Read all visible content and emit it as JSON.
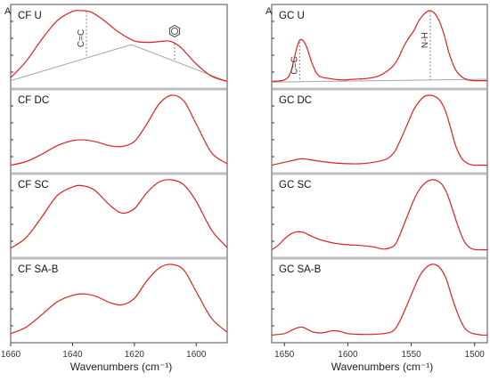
{
  "colors": {
    "spectrum": "#e02020",
    "baseline": "#a6a6a6",
    "frame": "#4d4d4d",
    "separator": "#bdbdbd"
  },
  "chart_data": [
    {
      "type": "line",
      "xlabel": "Wavenumbers (cm⁻¹)",
      "ylabel": "A",
      "xlim": [
        1660,
        1590
      ],
      "xticks": [
        1660,
        1640,
        1620,
        1600
      ],
      "grid": false,
      "panels": [
        {
          "label": "CF U",
          "x": [
            1660,
            1655,
            1650,
            1645,
            1640,
            1637,
            1634,
            1630,
            1625,
            1620,
            1615,
            1610,
            1608,
            1605,
            1600,
            1595,
            1590
          ],
          "y": [
            0.07,
            0.3,
            0.6,
            0.86,
            0.99,
            1.0,
            0.98,
            0.87,
            0.7,
            0.58,
            0.56,
            0.58,
            0.57,
            0.49,
            0.26,
            0.09,
            0.02
          ],
          "baseline": {
            "x": [
              1660,
              1621,
              1590
            ],
            "y": [
              0.03,
              0.53,
              0.02
            ]
          },
          "annotations": [
            {
              "text": "C=C",
              "x": 1635.5
            },
            {
              "icon": "benzene-ring-icon",
              "x": 1607
            }
          ]
        },
        {
          "label": "CF DC",
          "x": [
            1660,
            1655,
            1650,
            1645,
            1640,
            1636,
            1632,
            1628,
            1624,
            1620,
            1616,
            1612,
            1608,
            1604,
            1600,
            1595,
            1590
          ],
          "y": [
            0.03,
            0.08,
            0.18,
            0.3,
            0.37,
            0.38,
            0.35,
            0.3,
            0.29,
            0.36,
            0.6,
            0.88,
            1.0,
            0.92,
            0.6,
            0.2,
            0.05
          ],
          "baseline": null,
          "annotations": []
        },
        {
          "label": "CF SC",
          "x": [
            1660,
            1655,
            1650,
            1645,
            1640,
            1637,
            1633,
            1628,
            1624,
            1620,
            1616,
            1612,
            1608,
            1604,
            1600,
            1595,
            1590
          ],
          "y": [
            0.05,
            0.2,
            0.48,
            0.78,
            0.9,
            0.92,
            0.86,
            0.65,
            0.54,
            0.6,
            0.82,
            0.97,
            1.0,
            0.93,
            0.7,
            0.3,
            0.06
          ],
          "baseline": null,
          "annotations": []
        },
        {
          "label": "CF SA-B",
          "x": [
            1660,
            1655,
            1650,
            1645,
            1640,
            1636,
            1632,
            1628,
            1624,
            1620,
            1616,
            1612,
            1608,
            1604,
            1600,
            1595,
            1590
          ],
          "y": [
            0.04,
            0.13,
            0.3,
            0.48,
            0.57,
            0.59,
            0.55,
            0.47,
            0.44,
            0.53,
            0.77,
            0.95,
            1.0,
            0.92,
            0.62,
            0.25,
            0.06
          ],
          "baseline": null,
          "annotations": []
        }
      ]
    },
    {
      "type": "line",
      "xlabel": "Wavenumbers (cm⁻¹)",
      "ylabel": "A",
      "xlim": [
        1660,
        1490
      ],
      "xticks": [
        1650,
        1600,
        1550,
        1500
      ],
      "grid": false,
      "panels": [
        {
          "label": "GC U",
          "x": [
            1660,
            1650,
            1645,
            1640,
            1637,
            1633,
            1628,
            1623,
            1615,
            1605,
            1595,
            1585,
            1575,
            1565,
            1560,
            1556,
            1552,
            1548,
            1544,
            1540,
            1536,
            1532,
            1528,
            1524,
            1520,
            1515,
            1510,
            1505,
            1500,
            1495,
            1490
          ],
          "y": [
            0.02,
            0.04,
            0.15,
            0.5,
            0.6,
            0.52,
            0.26,
            0.1,
            0.06,
            0.04,
            0.05,
            0.06,
            0.1,
            0.22,
            0.35,
            0.5,
            0.62,
            0.72,
            0.86,
            0.95,
            1.0,
            0.97,
            0.86,
            0.66,
            0.4,
            0.18,
            0.08,
            0.04,
            0.03,
            0.03,
            0.03
          ],
          "baseline": {
            "x": [
              1660,
              1490
            ],
            "y": [
              0.01,
              0.05
            ]
          },
          "annotations": [
            {
              "text": "C=C",
              "x": 1638
            },
            {
              "text": "N-H",
              "x": 1535
            }
          ]
        },
        {
          "label": "GC DC",
          "x": [
            1660,
            1650,
            1640,
            1635,
            1628,
            1620,
            1610,
            1600,
            1590,
            1580,
            1572,
            1568,
            1563,
            1558,
            1553,
            1548,
            1543,
            1539,
            1535,
            1531,
            1527,
            1523,
            1519,
            1515,
            1510,
            1505,
            1500,
            1495,
            1490
          ],
          "y": [
            0.03,
            0.07,
            0.11,
            0.12,
            0.1,
            0.08,
            0.06,
            0.05,
            0.05,
            0.07,
            0.1,
            0.13,
            0.22,
            0.4,
            0.6,
            0.8,
            0.93,
            0.99,
            1.0,
            0.98,
            0.92,
            0.78,
            0.55,
            0.3,
            0.12,
            0.05,
            0.03,
            0.03,
            0.03
          ],
          "baseline": null,
          "annotations": []
        },
        {
          "label": "GC SC",
          "x": [
            1660,
            1655,
            1650,
            1645,
            1640,
            1635,
            1630,
            1625,
            1620,
            1610,
            1600,
            1590,
            1580,
            1572,
            1566,
            1562,
            1558,
            1553,
            1548,
            1543,
            1538,
            1534,
            1530,
            1526,
            1522,
            1518,
            1513,
            1508,
            1503,
            1498,
            1494,
            1490
          ],
          "y": [
            0.03,
            0.09,
            0.18,
            0.25,
            0.28,
            0.27,
            0.23,
            0.19,
            0.16,
            0.12,
            0.1,
            0.09,
            0.07,
            0.04,
            0.06,
            0.12,
            0.28,
            0.5,
            0.72,
            0.88,
            0.97,
            1.0,
            0.99,
            0.94,
            0.82,
            0.62,
            0.35,
            0.14,
            0.05,
            0.03,
            0.03,
            0.03
          ],
          "baseline": null,
          "annotations": []
        },
        {
          "label": "GC SA-B",
          "x": [
            1660,
            1650,
            1645,
            1640,
            1636,
            1632,
            1627,
            1620,
            1612,
            1606,
            1600,
            1590,
            1580,
            1572,
            1566,
            1562,
            1558,
            1553,
            1548,
            1543,
            1538,
            1534,
            1530,
            1526,
            1522,
            1518,
            1513,
            1508,
            1503,
            1498,
            1494,
            1490
          ],
          "y": [
            0.02,
            0.04,
            0.08,
            0.12,
            0.13,
            0.1,
            0.06,
            0.05,
            0.08,
            0.07,
            0.04,
            0.03,
            0.03,
            0.04,
            0.06,
            0.12,
            0.25,
            0.45,
            0.66,
            0.85,
            0.96,
            1.0,
            0.99,
            0.92,
            0.78,
            0.55,
            0.3,
            0.12,
            0.05,
            0.03,
            0.02,
            0.02
          ],
          "baseline": null,
          "annotations": []
        }
      ]
    }
  ]
}
